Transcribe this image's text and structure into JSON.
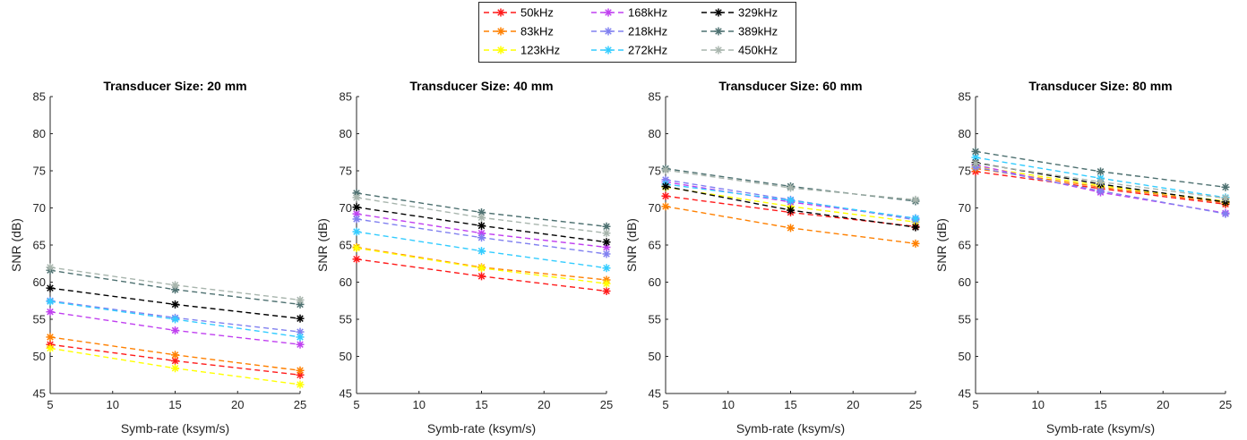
{
  "legend": {
    "placement": "top-center",
    "entries": [
      {
        "name": "50kHz",
        "color": "#ff1a1a"
      },
      {
        "name": "83kHz",
        "color": "#ff8000"
      },
      {
        "name": "123kHz",
        "color": "#ffff00"
      },
      {
        "name": "168kHz",
        "color": "#c040f0"
      },
      {
        "name": "218kHz",
        "color": "#8080f0"
      },
      {
        "name": "272kHz",
        "color": "#33ccff"
      },
      {
        "name": "329kHz",
        "color": "#000000"
      },
      {
        "name": "389kHz",
        "color": "#4d7070"
      },
      {
        "name": "450kHz",
        "color": "#a8b5ad"
      }
    ]
  },
  "chart_data": [
    {
      "type": "line",
      "title": "Transducer Size: 20 mm",
      "xlabel": "Symb-rate (ksym/s)",
      "ylabel": "SNR (dB)",
      "xlim": [
        5,
        25
      ],
      "ylim": [
        45,
        85
      ],
      "xticks": [
        5,
        10,
        15,
        20,
        25
      ],
      "yticks": [
        45,
        50,
        55,
        60,
        65,
        70,
        75,
        80,
        85
      ],
      "x": [
        5,
        15,
        25
      ],
      "grid": false,
      "series": [
        {
          "name": "50kHz",
          "values": [
            51.6,
            49.4,
            47.5
          ]
        },
        {
          "name": "83kHz",
          "values": [
            52.6,
            50.2,
            48.1
          ]
        },
        {
          "name": "123kHz",
          "values": [
            51.1,
            48.4,
            46.2
          ]
        },
        {
          "name": "168kHz",
          "values": [
            56.0,
            53.5,
            51.6
          ]
        },
        {
          "name": "218kHz",
          "values": [
            57.5,
            55.2,
            53.3
          ]
        },
        {
          "name": "272kHz",
          "values": [
            57.4,
            55.0,
            52.6
          ]
        },
        {
          "name": "329kHz",
          "values": [
            59.2,
            57.0,
            55.1
          ]
        },
        {
          "name": "389kHz",
          "values": [
            61.6,
            59.0,
            57.0
          ]
        },
        {
          "name": "450kHz",
          "values": [
            62.0,
            59.6,
            57.6
          ]
        }
      ]
    },
    {
      "type": "line",
      "title": "Transducer Size: 40 mm",
      "xlabel": "Symb-rate (ksym/s)",
      "ylabel": "SNR (dB)",
      "xlim": [
        5,
        25
      ],
      "ylim": [
        45,
        85
      ],
      "xticks": [
        5,
        10,
        15,
        20,
        25
      ],
      "yticks": [
        45,
        50,
        55,
        60,
        65,
        70,
        75,
        80,
        85
      ],
      "x": [
        5,
        15,
        25
      ],
      "grid": false,
      "series": [
        {
          "name": "50kHz",
          "values": [
            63.1,
            60.8,
            58.8
          ]
        },
        {
          "name": "83kHz",
          "values": [
            64.7,
            62.0,
            60.3
          ]
        },
        {
          "name": "123kHz",
          "values": [
            64.6,
            61.9,
            59.8
          ]
        },
        {
          "name": "168kHz",
          "values": [
            69.2,
            66.6,
            64.7
          ]
        },
        {
          "name": "218kHz",
          "values": [
            68.5,
            66.0,
            63.8
          ]
        },
        {
          "name": "272kHz",
          "values": [
            66.8,
            64.2,
            61.9
          ]
        },
        {
          "name": "329kHz",
          "values": [
            70.1,
            67.6,
            65.4
          ]
        },
        {
          "name": "389kHz",
          "values": [
            72.0,
            69.4,
            67.5
          ]
        },
        {
          "name": "450kHz",
          "values": [
            71.4,
            68.7,
            66.6
          ]
        }
      ]
    },
    {
      "type": "line",
      "title": "Transducer Size: 60 mm",
      "xlabel": "Symb-rate (ksym/s)",
      "ylabel": "SNR (dB)",
      "xlim": [
        5,
        25
      ],
      "ylim": [
        45,
        85
      ],
      "xticks": [
        5,
        10,
        15,
        20,
        25
      ],
      "yticks": [
        45,
        50,
        55,
        60,
        65,
        70,
        75,
        80,
        85
      ],
      "x": [
        5,
        15,
        25
      ],
      "grid": false,
      "series": [
        {
          "name": "50kHz",
          "values": [
            71.6,
            69.4,
            67.5
          ]
        },
        {
          "name": "83kHz",
          "values": [
            70.2,
            67.3,
            65.2
          ]
        },
        {
          "name": "123kHz",
          "values": [
            72.8,
            70.2,
            68.1
          ]
        },
        {
          "name": "168kHz",
          "values": [
            73.5,
            70.8,
            68.6
          ]
        },
        {
          "name": "218kHz",
          "values": [
            73.8,
            71.1,
            68.4
          ]
        },
        {
          "name": "272kHz",
          "values": [
            73.2,
            71.0,
            68.6
          ]
        },
        {
          "name": "329kHz",
          "values": [
            72.9,
            69.7,
            67.4
          ]
        },
        {
          "name": "389kHz",
          "values": [
            75.3,
            72.9,
            70.9
          ]
        },
        {
          "name": "450kHz",
          "values": [
            75.1,
            72.7,
            71.1
          ]
        }
      ]
    },
    {
      "type": "line",
      "title": "Transducer Size: 80 mm",
      "xlabel": "Symb-rate (ksym/s)",
      "ylabel": "SNR (dB)",
      "xlim": [
        5,
        25
      ],
      "ylim": [
        45,
        85
      ],
      "xticks": [
        5,
        10,
        15,
        20,
        25
      ],
      "yticks": [
        45,
        50,
        55,
        60,
        65,
        70,
        75,
        80,
        85
      ],
      "x": [
        5,
        15,
        25
      ],
      "grid": false,
      "series": [
        {
          "name": "50kHz",
          "values": [
            74.9,
            72.6,
            70.5
          ]
        },
        {
          "name": "83kHz",
          "values": [
            75.3,
            72.8,
            70.7
          ]
        },
        {
          "name": "123kHz",
          "values": [
            75.6,
            73.0,
            70.9
          ]
        },
        {
          "name": "168kHz",
          "values": [
            75.8,
            72.1,
            69.3
          ]
        },
        {
          "name": "218kHz",
          "values": [
            75.5,
            72.3,
            69.2
          ]
        },
        {
          "name": "272kHz",
          "values": [
            76.8,
            74.0,
            71.4
          ]
        },
        {
          "name": "329kHz",
          "values": [
            76.1,
            73.2,
            70.8
          ]
        },
        {
          "name": "389kHz",
          "values": [
            77.6,
            74.9,
            72.8
          ]
        },
        {
          "name": "450kHz",
          "values": [
            76.0,
            73.5,
            71.3
          ]
        }
      ]
    }
  ]
}
